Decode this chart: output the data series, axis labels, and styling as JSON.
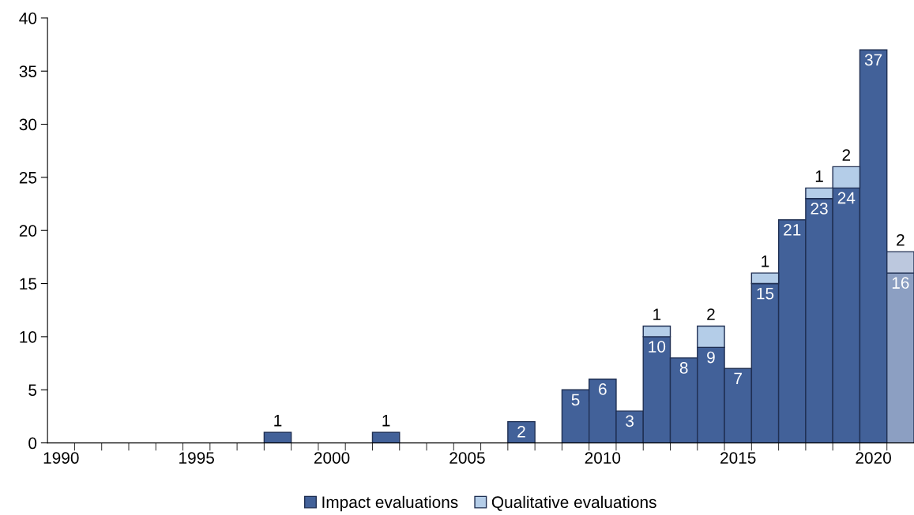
{
  "chart_data": {
    "type": "bar",
    "stacked": true,
    "categories": [
      "1990",
      null,
      null,
      null,
      null,
      "1995",
      null,
      null,
      null,
      null,
      "2000",
      null,
      null,
      null,
      null,
      "2005",
      null,
      null,
      null,
      null,
      "2010",
      null,
      null,
      null,
      null,
      "2015",
      null,
      null,
      null,
      null,
      "2020",
      null
    ],
    "series": [
      {
        "name": "Impact evaluations",
        "color": "#426199",
        "colors": [
          "#426199",
          "#426199",
          "#426199",
          "#426199",
          "#426199",
          "#426199",
          "#426199",
          "#426199",
          "#426199",
          "#426199",
          "#426199",
          "#426199",
          "#426199",
          "#426199",
          "#426199",
          "#426199",
          "#426199",
          "#426199",
          "#426199",
          "#426199",
          "#426199",
          "#426199",
          "#426199",
          "#426199",
          "#426199",
          "#426199",
          "#426199",
          "#426199",
          "#426199",
          "#426199",
          "#426199",
          "#8c9fc2"
        ],
        "values": [
          null,
          null,
          null,
          null,
          null,
          null,
          null,
          null,
          1,
          null,
          null,
          null,
          1,
          null,
          null,
          null,
          null,
          2,
          null,
          5,
          6,
          3,
          10,
          8,
          9,
          7,
          15,
          21,
          23,
          24,
          37,
          16
        ],
        "value_labels": [
          null,
          null,
          null,
          null,
          null,
          null,
          null,
          null,
          "1",
          null,
          null,
          null,
          "1",
          null,
          null,
          null,
          null,
          "2",
          null,
          "5",
          "6",
          "3",
          "10",
          "8",
          "9",
          "7",
          "15",
          "21",
          "23",
          "24",
          "37",
          "16"
        ]
      },
      {
        "name": "Qualitative evaluations",
        "color": "#b4cde8",
        "colors": [
          "#b4cde8",
          "#b4cde8",
          "#b4cde8",
          "#b4cde8",
          "#b4cde8",
          "#b4cde8",
          "#b4cde8",
          "#b4cde8",
          "#b4cde8",
          "#b4cde8",
          "#b4cde8",
          "#b4cde8",
          "#b4cde8",
          "#b4cde8",
          "#b4cde8",
          "#b4cde8",
          "#b4cde8",
          "#b4cde8",
          "#b4cde8",
          "#b4cde8",
          "#b4cde8",
          "#b4cde8",
          "#b4cde8",
          "#b4cde8",
          "#b4cde8",
          "#b4cde8",
          "#b4cde8",
          "#b4cde8",
          "#b4cde8",
          "#b4cde8",
          "#b4cde8",
          "#bcc8de"
        ],
        "values": [
          null,
          null,
          null,
          null,
          null,
          null,
          null,
          null,
          null,
          null,
          null,
          null,
          null,
          null,
          null,
          null,
          null,
          null,
          null,
          null,
          null,
          null,
          1,
          null,
          2,
          null,
          1,
          null,
          1,
          2,
          null,
          2
        ],
        "value_labels": [
          null,
          null,
          null,
          null,
          null,
          null,
          null,
          null,
          null,
          null,
          null,
          null,
          null,
          null,
          null,
          null,
          null,
          null,
          null,
          null,
          null,
          null,
          "1",
          null,
          "2",
          null,
          "1",
          null,
          "1",
          "2",
          null,
          "2"
        ]
      }
    ],
    "ylim": [
      0,
      40
    ],
    "yticks": [
      0,
      5,
      10,
      15,
      20,
      25,
      30,
      35,
      40
    ],
    "grid": false,
    "legend": "bottom"
  }
}
